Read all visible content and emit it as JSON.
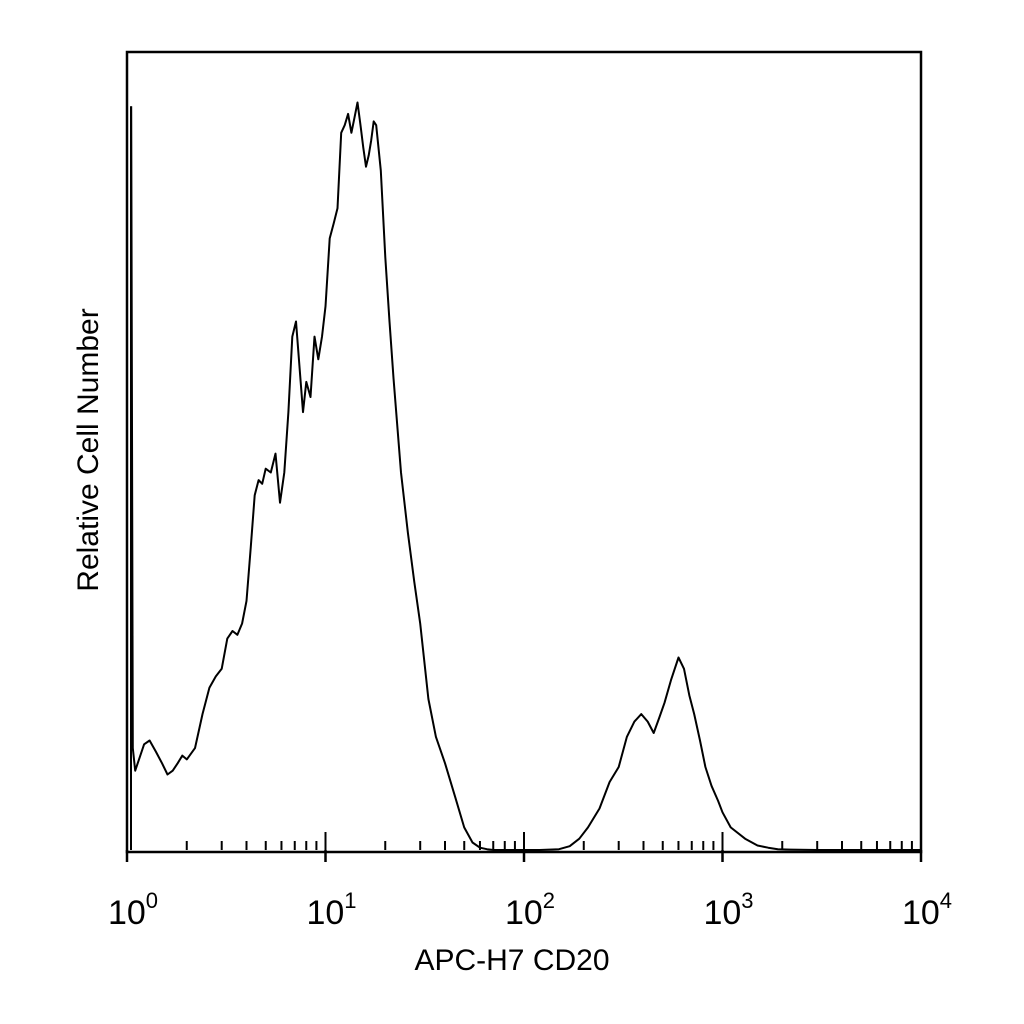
{
  "chart_data": {
    "type": "line",
    "xlabel": "APC-H7 CD20",
    "ylabel": "Relative Cell Number",
    "x_scale": "log",
    "xlim": [
      1,
      10000
    ],
    "ylim": [
      0,
      100
    ],
    "x_ticks": [
      {
        "base": "10",
        "exp": "0",
        "value": 1
      },
      {
        "base": "10",
        "exp": "1",
        "value": 10
      },
      {
        "base": "10",
        "exp": "2",
        "value": 100
      },
      {
        "base": "10",
        "exp": "3",
        "value": 1000
      },
      {
        "base": "10",
        "exp": "4",
        "value": 10000
      }
    ],
    "grid": false,
    "line_color": "#000000",
    "series": [
      {
        "x": [
          1.05,
          1.07,
          1.1,
          1.15,
          1.22,
          1.3,
          1.4,
          1.5,
          1.6,
          1.7,
          1.8,
          1.9,
          2.0,
          2.2,
          2.4,
          2.6,
          2.8,
          3.0,
          3.2,
          3.4,
          3.6,
          3.8,
          4.0,
          4.2,
          4.4,
          4.6,
          4.8,
          5.0,
          5.3,
          5.6,
          5.9,
          6.2,
          6.5,
          6.8,
          7.1,
          7.4,
          7.7,
          8.0,
          8.4,
          8.8,
          9.2,
          9.6,
          10.0,
          10.5,
          11.0,
          11.5,
          12.0,
          12.5,
          13.0,
          13.5,
          14.0,
          14.5,
          15.0,
          15.5,
          16.0,
          16.5,
          17.0,
          17.5,
          18.0,
          19.0,
          20.0,
          21.0,
          22.0,
          24.0,
          26.0,
          28.0,
          30.0,
          33.0,
          36.0,
          40.0,
          45.0,
          50.0,
          55.0,
          60.0,
          65.0,
          70.0,
          80.0,
          90.0,
          100,
          120,
          150,
          170,
          190,
          210,
          240,
          270,
          300,
          330,
          360,
          390,
          420,
          450,
          480,
          510,
          550,
          600,
          640,
          680,
          720,
          770,
          820,
          880,
          950,
          1000,
          1100,
          1300,
          1500,
          1700,
          1900,
          2200,
          3000,
          4000,
          6000,
          8000,
          10000
        ],
        "y": [
          98.5,
          13.5,
          10.5,
          12.0,
          14.0,
          14.5,
          13.0,
          11.5,
          10.0,
          10.5,
          11.5,
          12.5,
          12.0,
          13.5,
          18.0,
          21.5,
          23.0,
          24.0,
          28.0,
          29.0,
          28.5,
          30.0,
          33.0,
          40.0,
          47.0,
          49.0,
          48.5,
          50.5,
          50.0,
          52.5,
          46.0,
          50.0,
          58.0,
          68.0,
          70.0,
          64.0,
          58.0,
          62.0,
          60.0,
          68.0,
          65.0,
          68.0,
          72.0,
          81.0,
          83.0,
          85.0,
          95.0,
          96.0,
          97.5,
          95.0,
          97.0,
          99.0,
          96.0,
          93.0,
          90.5,
          92.0,
          94.0,
          96.5,
          96.0,
          90.0,
          78.5,
          70.0,
          62.5,
          50.0,
          42.0,
          35.5,
          30.0,
          20.0,
          15.0,
          11.5,
          7.0,
          3.0,
          1.0,
          0.3,
          0.1,
          0.0,
          0.0,
          0.0,
          0.0,
          0.0,
          0.1,
          0.5,
          1.5,
          3.0,
          5.5,
          9.0,
          11.0,
          15.0,
          17.0,
          18.0,
          17.0,
          15.5,
          17.5,
          19.5,
          22.5,
          25.5,
          24.0,
          20.5,
          18.0,
          14.5,
          11.0,
          8.5,
          6.5,
          5.0,
          3.0,
          1.5,
          0.6,
          0.3,
          0.1,
          0.05,
          0.0,
          0.0,
          0.0,
          0.0,
          0.0
        ]
      }
    ]
  }
}
